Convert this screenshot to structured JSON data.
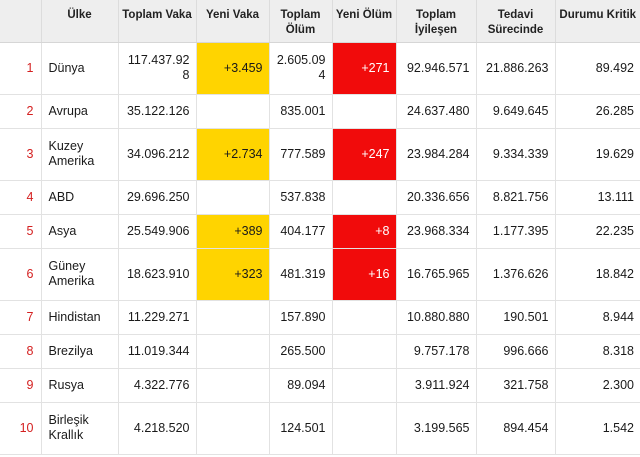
{
  "headers": {
    "rank": "",
    "country": "Ülke",
    "total_cases": "Toplam Vaka",
    "new_cases": "Yeni Vaka",
    "total_deaths": "Toplam Ölüm",
    "new_deaths": "Yeni Ölüm",
    "total_recovered": "Toplam İyileşen",
    "active": "Tedavi Sürecinde",
    "critical": "Durumu Kritik"
  },
  "rows": [
    {
      "rank": "1",
      "country": "Dünya",
      "total_cases": "117.437.928",
      "new_cases": "+3.459",
      "total_deaths": "2.605.094",
      "new_deaths": "+271",
      "total_recovered": "92.946.571",
      "active": "21.886.263",
      "critical": "89.492"
    },
    {
      "rank": "2",
      "country": "Avrupa",
      "total_cases": "35.122.126",
      "new_cases": "",
      "total_deaths": "835.001",
      "new_deaths": "",
      "total_recovered": "24.637.480",
      "active": "9.649.645",
      "critical": "26.285"
    },
    {
      "rank": "3",
      "country": "Kuzey Amerika",
      "total_cases": "34.096.212",
      "new_cases": "+2.734",
      "total_deaths": "777.589",
      "new_deaths": "+247",
      "total_recovered": "23.984.284",
      "active": "9.334.339",
      "critical": "19.629"
    },
    {
      "rank": "4",
      "country": "ABD",
      "total_cases": "29.696.250",
      "new_cases": "",
      "total_deaths": "537.838",
      "new_deaths": "",
      "total_recovered": "20.336.656",
      "active": "8.821.756",
      "critical": "13.111"
    },
    {
      "rank": "5",
      "country": "Asya",
      "total_cases": "25.549.906",
      "new_cases": "+389",
      "total_deaths": "404.177",
      "new_deaths": "+8",
      "total_recovered": "23.968.334",
      "active": "1.177.395",
      "critical": "22.235"
    },
    {
      "rank": "6",
      "country": "Güney Amerika",
      "total_cases": "18.623.910",
      "new_cases": "+323",
      "total_deaths": "481.319",
      "new_deaths": "+16",
      "total_recovered": "16.765.965",
      "active": "1.376.626",
      "critical": "18.842"
    },
    {
      "rank": "7",
      "country": "Hindistan",
      "total_cases": "11.229.271",
      "new_cases": "",
      "total_deaths": "157.890",
      "new_deaths": "",
      "total_recovered": "10.880.880",
      "active": "190.501",
      "critical": "8.944"
    },
    {
      "rank": "8",
      "country": "Brezilya",
      "total_cases": "11.019.344",
      "new_cases": "",
      "total_deaths": "265.500",
      "new_deaths": "",
      "total_recovered": "9.757.178",
      "active": "996.666",
      "critical": "8.318"
    },
    {
      "rank": "9",
      "country": "Rusya",
      "total_cases": "4.322.776",
      "new_cases": "",
      "total_deaths": "89.094",
      "new_deaths": "",
      "total_recovered": "3.911.924",
      "active": "321.758",
      "critical": "2.300"
    },
    {
      "rank": "10",
      "country": "Birleşik Krallık",
      "total_cases": "4.218.520",
      "new_cases": "",
      "total_deaths": "124.501",
      "new_deaths": "",
      "total_recovered": "3.199.565",
      "active": "894.454",
      "critical": "1.542"
    }
  ],
  "colors": {
    "new_case_highlight": "#ffd400",
    "new_death_highlight": "#f10b0b",
    "rank_text": "#d42020",
    "header_background": "#eeeeee"
  }
}
